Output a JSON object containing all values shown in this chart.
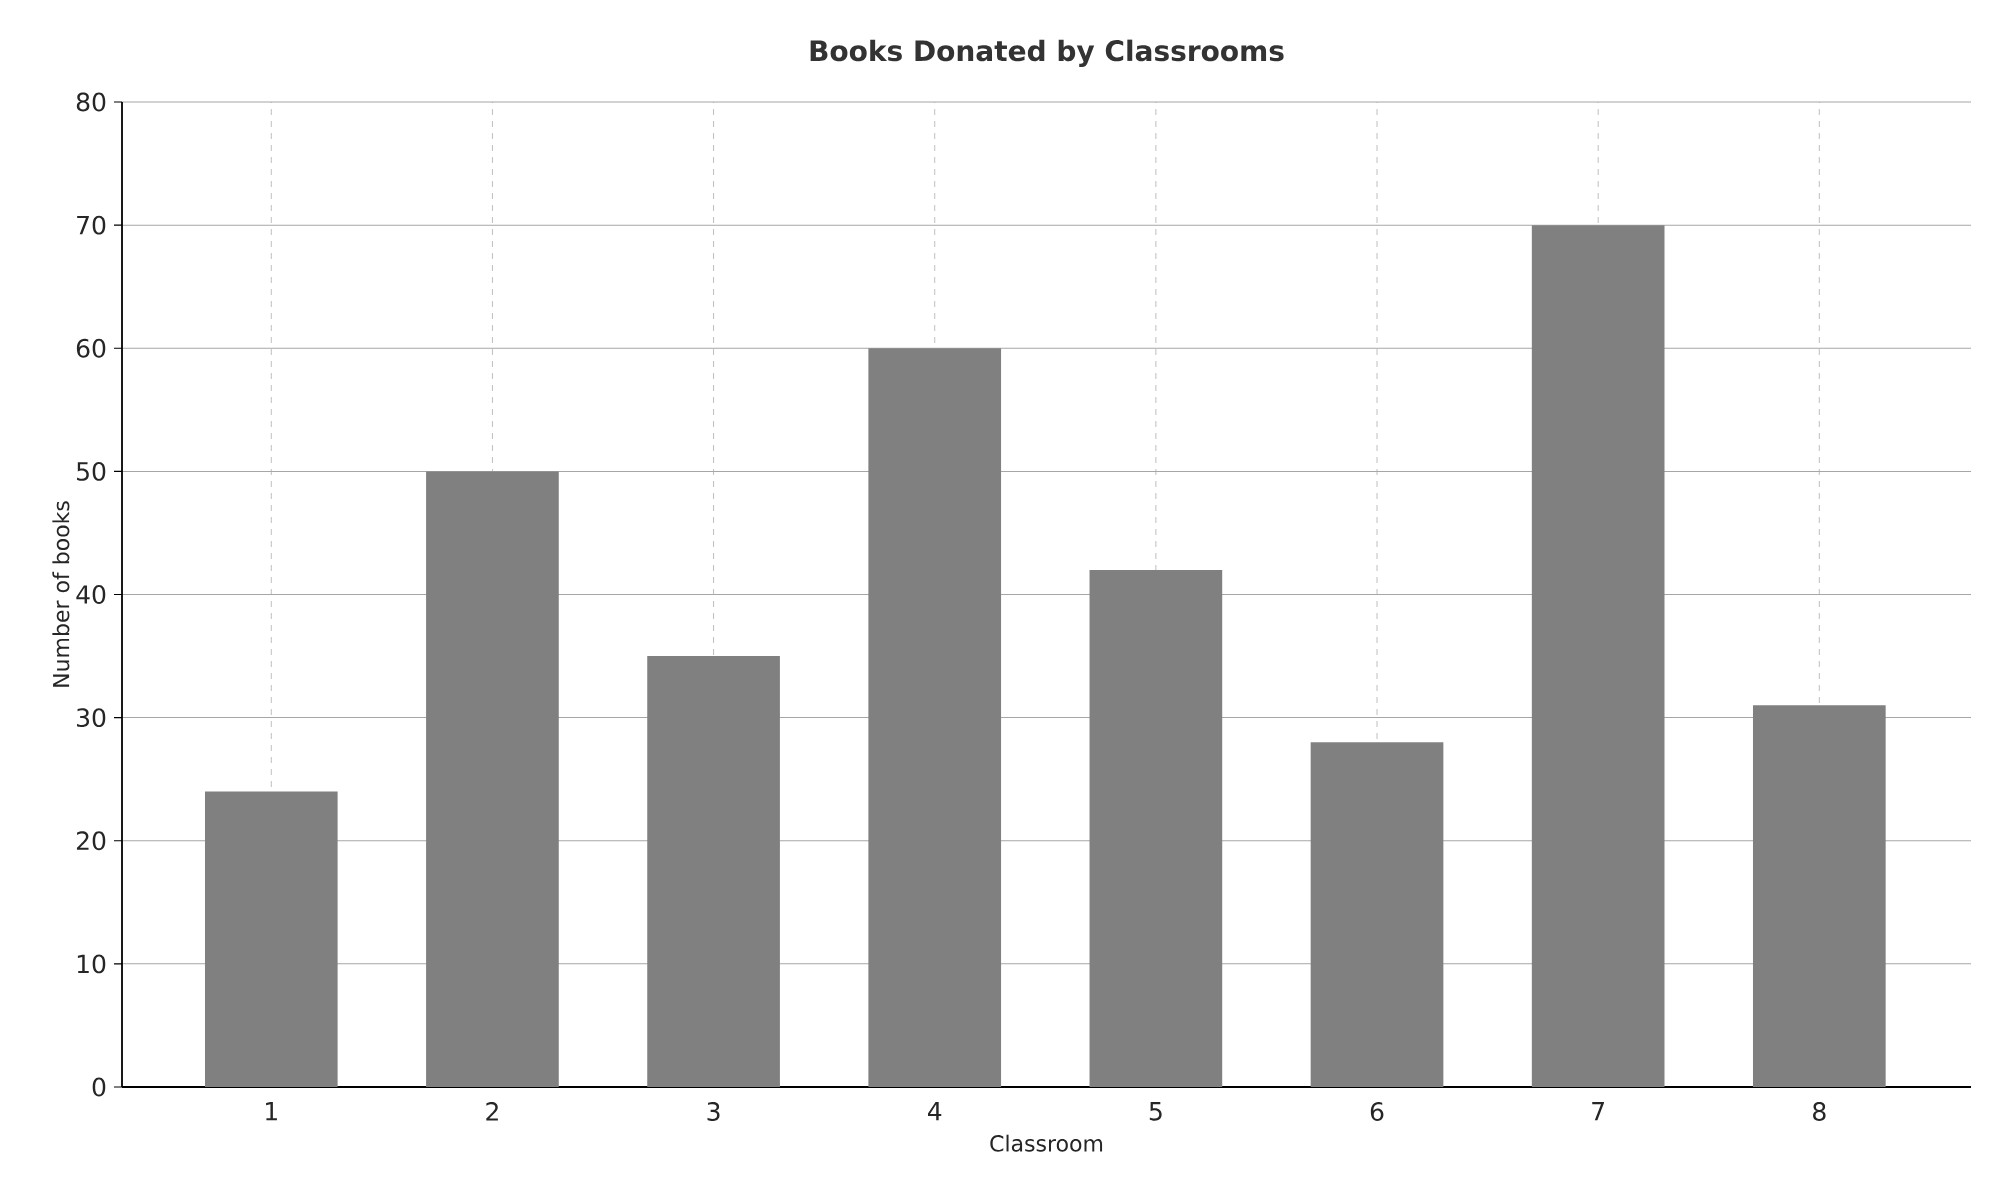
{
  "chart_data": {
    "type": "bar",
    "title": "Books Donated by Classrooms",
    "xlabel": "Classroom",
    "ylabel": "Number of books",
    "categories": [
      "1",
      "2",
      "3",
      "4",
      "5",
      "6",
      "7",
      "8"
    ],
    "values": [
      24,
      50,
      35,
      60,
      42,
      28,
      70,
      31
    ],
    "color": "#808080",
    "ylim": [
      0,
      80
    ],
    "yticks": [
      0,
      10,
      20,
      30,
      40,
      50,
      60,
      70,
      80
    ],
    "grid": true
  }
}
